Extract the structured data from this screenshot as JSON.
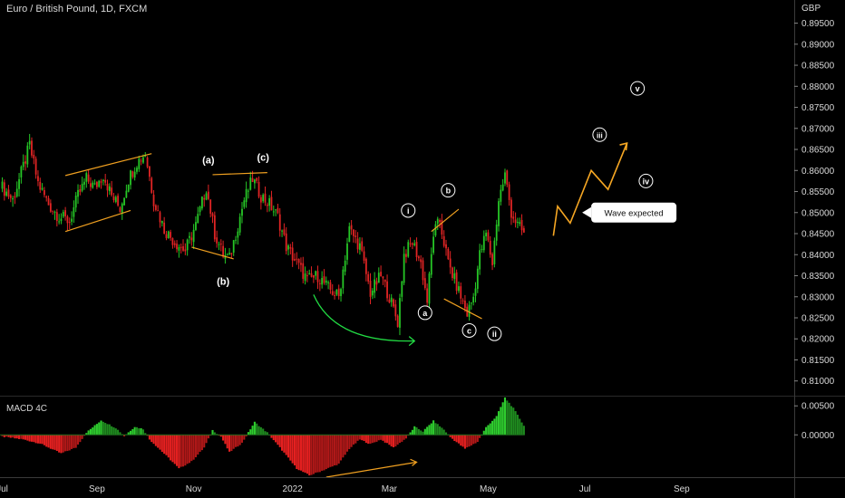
{
  "chart_title": "Euro / British Pound, 1D, FXCM",
  "currency": "GBP",
  "macd_title": "MACD 4C",
  "colors": {
    "up": "#26c626",
    "down": "#e02424",
    "annot": "#f0a020",
    "curve": "#22dd44",
    "wave": "#f5a623",
    "text": "#ffffff",
    "axis": "#d8d8d8"
  },
  "chart_data": [
    {
      "type": "candlestick",
      "title": "Euro / British Pound, 1D, FXCM",
      "ylabel": "GBP",
      "ylim": [
        0.8065,
        0.9005
      ],
      "y_ticks": [
        "0.89500",
        "0.89000",
        "0.88500",
        "0.88000",
        "0.87500",
        "0.87000",
        "0.86500",
        "0.86000",
        "0.85500",
        "0.85000",
        "0.84500",
        "0.84000",
        "0.83500",
        "0.83000",
        "0.82500",
        "0.82000",
        "0.81500",
        "0.81000"
      ],
      "x_ticks": [
        "Jul",
        "Sep",
        "Nov",
        "2022",
        "Mar",
        "May",
        "Jul",
        "Sep"
      ],
      "x_tick_index": [
        0,
        45,
        91,
        138,
        184,
        231,
        277,
        323
      ],
      "close_path": [
        [
          0,
          0.856
        ],
        [
          5,
          0.853
        ],
        [
          10,
          0.861
        ],
        [
          13,
          0.866
        ],
        [
          17,
          0.857
        ],
        [
          22,
          0.852
        ],
        [
          27,
          0.849
        ],
        [
          32,
          0.848
        ],
        [
          36,
          0.854
        ],
        [
          40,
          0.858
        ],
        [
          44,
          0.856
        ],
        [
          48,
          0.859
        ],
        [
          52,
          0.854
        ],
        [
          56,
          0.851
        ],
        [
          60,
          0.858
        ],
        [
          64,
          0.862
        ],
        [
          68,
          0.864
        ],
        [
          72,
          0.853
        ],
        [
          77,
          0.846
        ],
        [
          82,
          0.843
        ],
        [
          87,
          0.841
        ],
        [
          92,
          0.847
        ],
        [
          97,
          0.856
        ],
        [
          101,
          0.845
        ],
        [
          105,
          0.84
        ],
        [
          108,
          0.839
        ],
        [
          111,
          0.845
        ],
        [
          115,
          0.853
        ],
        [
          119,
          0.858
        ],
        [
          123,
          0.854
        ],
        [
          127,
          0.852
        ],
        [
          131,
          0.849
        ],
        [
          135,
          0.842
        ],
        [
          140,
          0.838
        ],
        [
          145,
          0.834
        ],
        [
          150,
          0.835
        ],
        [
          155,
          0.832
        ],
        [
          160,
          0.83
        ],
        [
          165,
          0.846
        ],
        [
          170,
          0.842
        ],
        [
          175,
          0.831
        ],
        [
          180,
          0.835
        ],
        [
          184,
          0.83
        ],
        [
          188,
          0.824
        ],
        [
          191,
          0.84
        ],
        [
          195,
          0.843
        ],
        [
          199,
          0.838
        ],
        [
          202,
          0.829
        ],
        [
          205,
          0.845
        ],
        [
          208,
          0.848
        ],
        [
          212,
          0.838
        ],
        [
          215,
          0.834
        ],
        [
          218,
          0.83
        ],
        [
          221,
          0.826
        ],
        [
          224,
          0.83
        ],
        [
          227,
          0.84
        ],
        [
          230,
          0.845
        ],
        [
          233,
          0.838
        ],
        [
          236,
          0.853
        ],
        [
          239,
          0.859
        ],
        [
          242,
          0.85
        ],
        [
          245,
          0.847
        ],
        [
          248,
          0.845
        ]
      ],
      "annotations": [
        {
          "label": "(a)",
          "i": 98,
          "price": 0.8625
        },
        {
          "label": "(b)",
          "i": 105,
          "price": 0.8337
        },
        {
          "label": "(c)",
          "i": 124,
          "price": 0.8632
        },
        {
          "label": "i",
          "i": 193,
          "price": 0.8505,
          "circle": true
        },
        {
          "label": "b",
          "i": 212,
          "price": 0.8553,
          "circle": true
        },
        {
          "label": "a",
          "i": 201,
          "price": 0.8262,
          "circle": true
        },
        {
          "label": "c",
          "i": 222,
          "price": 0.822,
          "circle": true
        },
        {
          "label": "ii",
          "i": 234,
          "price": 0.8212,
          "circle": true
        },
        {
          "label": "iii",
          "i": 284,
          "price": 0.8685,
          "circle": true
        },
        {
          "label": "iv",
          "i": 306,
          "price": 0.8575,
          "circle": true
        },
        {
          "label": "v",
          "i": 302,
          "price": 0.8795,
          "circle": true
        }
      ],
      "callout": "Wave expected",
      "callout_price": 0.85,
      "callout_i": 280
    },
    {
      "type": "bar",
      "title": "MACD 4C",
      "ylim": [
        -0.0073,
        0.0066
      ],
      "y_ticks": [
        "0.00500",
        "0.00000"
      ],
      "x_tick_index": [
        0,
        45,
        91,
        138,
        184,
        231,
        277,
        323
      ],
      "macd_path": [
        [
          0,
          -0.0003
        ],
        [
          10,
          -0.0008
        ],
        [
          18,
          -0.0015
        ],
        [
          28,
          -0.0032
        ],
        [
          35,
          -0.0022
        ],
        [
          40,
          0.0004
        ],
        [
          47,
          0.0025
        ],
        [
          54,
          0.0012
        ],
        [
          58,
          -0.0002
        ],
        [
          63,
          0.0014
        ],
        [
          67,
          0.001
        ],
        [
          70,
          -0.0008
        ],
        [
          78,
          -0.0036
        ],
        [
          84,
          -0.0058
        ],
        [
          90,
          -0.0046
        ],
        [
          96,
          -0.0022
        ],
        [
          100,
          0.0008
        ],
        [
          104,
          -0.0003
        ],
        [
          108,
          -0.003
        ],
        [
          114,
          -0.0014
        ],
        [
          120,
          0.0022
        ],
        [
          126,
          0.0004
        ],
        [
          132,
          -0.0022
        ],
        [
          140,
          -0.0058
        ],
        [
          146,
          -0.007
        ],
        [
          152,
          -0.0062
        ],
        [
          160,
          -0.005
        ],
        [
          165,
          -0.0024
        ],
        [
          170,
          -0.0008
        ],
        [
          175,
          -0.0016
        ],
        [
          180,
          -0.0008
        ],
        [
          186,
          -0.0022
        ],
        [
          192,
          -0.0006
        ],
        [
          196,
          0.0014
        ],
        [
          200,
          0.0006
        ],
        [
          205,
          0.0024
        ],
        [
          210,
          0.0009
        ],
        [
          213,
          -0.0004
        ],
        [
          220,
          -0.0024
        ],
        [
          226,
          -0.0012
        ],
        [
          230,
          0.0013
        ],
        [
          235,
          0.0032
        ],
        [
          239,
          0.0064
        ],
        [
          243,
          0.0046
        ],
        [
          248,
          0.0016
        ]
      ]
    }
  ]
}
